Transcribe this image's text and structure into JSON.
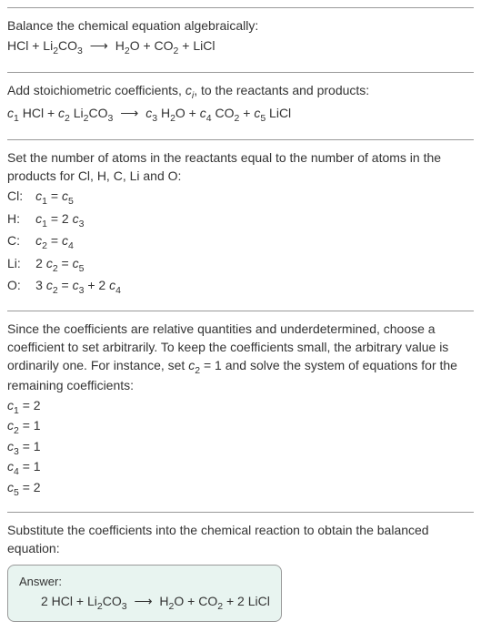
{
  "section1": {
    "prompt": "Balance the chemical equation algebraically:",
    "equation_html": "HCl + Li<sub>2</sub>CO<sub>3</sub> <span class='arrow'>⟶</span> H<sub>2</sub>O + CO<sub>2</sub> + LiCl"
  },
  "section2": {
    "intro_html": "Add stoichiometric coefficients, <span class='italic'>c<sub>i</sub></span>, to the reactants and products:",
    "equation_html": "<span class='italic'>c</span><sub>1</sub> HCl + <span class='italic'>c</span><sub>2</sub> Li<sub>2</sub>CO<sub>3</sub> <span class='arrow'>⟶</span> <span class='italic'>c</span><sub>3</sub> H<sub>2</sub>O + <span class='italic'>c</span><sub>4</sub> CO<sub>2</sub> + <span class='italic'>c</span><sub>5</sub> LiCl"
  },
  "section3": {
    "intro": "Set the number of atoms in the reactants equal to the number of atoms in the products for Cl, H, C, Li and O:",
    "rows": [
      {
        "elem": "Cl:",
        "eq_html": "<span class='italic'>c</span><sub>1</sub> = <span class='italic'>c</span><sub>5</sub>"
      },
      {
        "elem": "H:",
        "eq_html": "<span class='italic'>c</span><sub>1</sub> = 2 <span class='italic'>c</span><sub>3</sub>"
      },
      {
        "elem": "C:",
        "eq_html": "<span class='italic'>c</span><sub>2</sub> = <span class='italic'>c</span><sub>4</sub>"
      },
      {
        "elem": "Li:",
        "eq_html": "2 <span class='italic'>c</span><sub>2</sub> = <span class='italic'>c</span><sub>5</sub>"
      },
      {
        "elem": "O:",
        "eq_html": "3 <span class='italic'>c</span><sub>2</sub> = <span class='italic'>c</span><sub>3</sub> + 2 <span class='italic'>c</span><sub>4</sub>"
      }
    ]
  },
  "section4": {
    "intro_html": "Since the coefficients are relative quantities and underdetermined, choose a coefficient to set arbitrarily. To keep the coefficients small, the arbitrary value is ordinarily one. For instance, set <span class='italic'>c</span><sub>2</sub> = 1 and solve the system of equations for the remaining coefficients:",
    "coefs": [
      "<span class='italic'>c</span><sub>1</sub> = 2",
      "<span class='italic'>c</span><sub>2</sub> = 1",
      "<span class='italic'>c</span><sub>3</sub> = 1",
      "<span class='italic'>c</span><sub>4</sub> = 1",
      "<span class='italic'>c</span><sub>5</sub> = 2"
    ]
  },
  "section5": {
    "intro": "Substitute the coefficients into the chemical reaction to obtain the balanced equation:",
    "answer_label": "Answer:",
    "answer_eq_html": "2 HCl + Li<sub>2</sub>CO<sub>3</sub> <span class='arrow'>⟶</span> H<sub>2</sub>O + CO<sub>2</sub> + 2 LiCl"
  },
  "colors": {
    "text": "#333333",
    "border": "#999999",
    "answer_bg": "#e8f4f0"
  },
  "typography": {
    "body_fontsize": 14,
    "answer_label_fontsize": 13
  }
}
